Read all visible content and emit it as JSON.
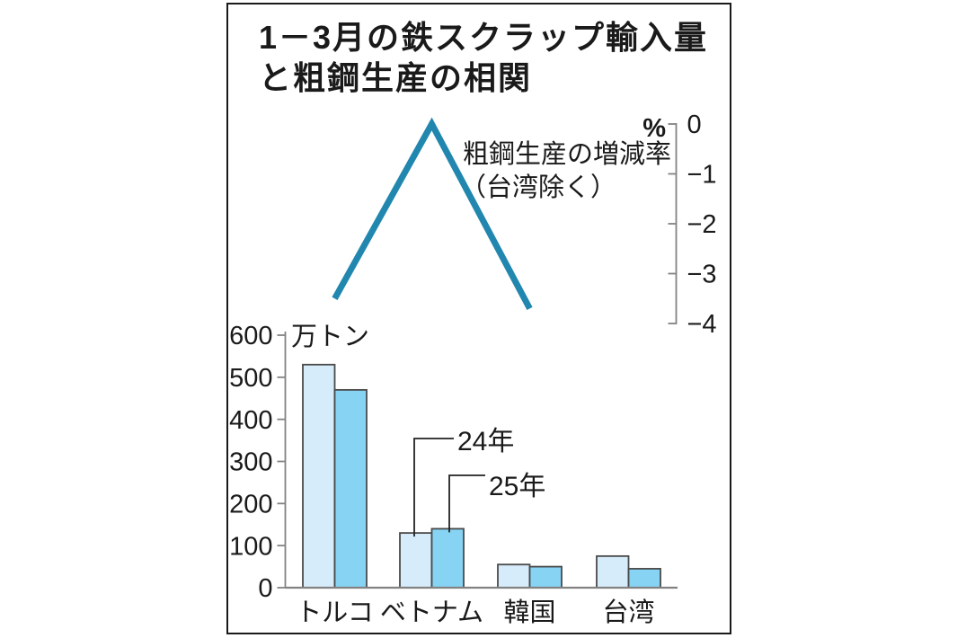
{
  "title": {
    "line1": "1－3月の鉄スクラップ輸入量",
    "line2": "と粗鋼生産の相関"
  },
  "colors": {
    "bar_2024": "#d6ecfa",
    "bar_2025": "#87d3f3",
    "bar_border": "#4a4a4a",
    "line": "#2187ae",
    "axis": "#828282",
    "leader": "#222222",
    "text": "#1a1a1a"
  },
  "chart_data": [
    {
      "type": "line",
      "name": "crude-steel-production-change-rate",
      "title": "粗鋼生産の増減率",
      "subtitle": "（台湾除く）",
      "unit": "%",
      "categories": [
        "トルコ",
        "ベトナム",
        "韓国"
      ],
      "values": [
        -3.5,
        0,
        -3.7
      ],
      "axis": {
        "side": "right",
        "range": [
          0,
          -4
        ],
        "ticks": [
          0,
          -1,
          -2,
          -3,
          -4
        ],
        "tick_labels": [
          "0",
          "−1",
          "−2",
          "−3",
          "−4"
        ]
      },
      "legend_position": "none",
      "grid": false
    },
    {
      "type": "bar",
      "name": "iron-scrap-import-volume",
      "unit": "万トン",
      "categories": [
        "トルコ",
        "ベトナム",
        "韓国",
        "台湾"
      ],
      "series": [
        {
          "name": "24年",
          "values": [
            530,
            130,
            55,
            75
          ],
          "color": "#d6ecfa"
        },
        {
          "name": "25年",
          "values": [
            470,
            140,
            50,
            45
          ],
          "color": "#87d3f3"
        }
      ],
      "axis": {
        "side": "left",
        "range": [
          0,
          600
        ],
        "ticks": [
          600,
          500,
          400,
          300,
          200,
          100,
          0
        ],
        "tick_labels": [
          "600",
          "500",
          "400",
          "300",
          "200",
          "100",
          "0"
        ]
      },
      "legend_position": "callout-above-vietnam-bars",
      "grid": false
    }
  ]
}
